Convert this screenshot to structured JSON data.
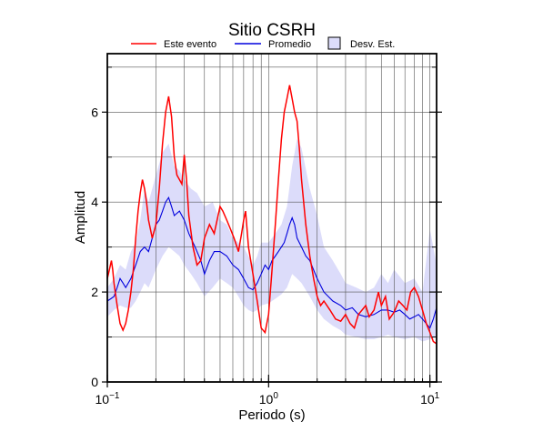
{
  "chart_data": {
    "type": "line",
    "title": "Sitio CSRH",
    "xlabel": "Periodo (s)",
    "ylabel": "Amplitud",
    "xscale": "log",
    "xlim": [
      0.1,
      11
    ],
    "ylim": [
      0,
      7.3
    ],
    "grid": true,
    "legend_placement": "top",
    "x_tick_labels": [
      {
        "value": 0.1,
        "base": "10",
        "exp": "−1"
      },
      {
        "value": 1,
        "base": "10",
        "exp": "0"
      },
      {
        "value": 10,
        "base": "10",
        "exp": "1"
      }
    ],
    "y_ticks": [
      0,
      2,
      4,
      6
    ],
    "y_tick_labels": [
      "0",
      "2",
      "4",
      "6"
    ],
    "legend": {
      "event_label": "Este evento",
      "mean_label": "Promedio",
      "std_label": "Desv. Est."
    },
    "colors": {
      "event": "#ff0000",
      "mean": "#0000dd",
      "std_fill": "#dcdcfa"
    },
    "series": [
      {
        "name": "Este evento",
        "x": [
          0.1,
          0.103,
          0.106,
          0.108,
          0.11,
          0.115,
          0.12,
          0.125,
          0.13,
          0.135,
          0.14,
          0.145,
          0.15,
          0.155,
          0.16,
          0.165,
          0.17,
          0.175,
          0.18,
          0.19,
          0.2,
          0.21,
          0.22,
          0.23,
          0.24,
          0.25,
          0.26,
          0.27,
          0.28,
          0.29,
          0.3,
          0.31,
          0.32,
          0.34,
          0.36,
          0.38,
          0.4,
          0.43,
          0.46,
          0.5,
          0.52,
          0.55,
          0.58,
          0.61,
          0.65,
          0.68,
          0.7,
          0.72,
          0.75,
          0.8,
          0.85,
          0.9,
          0.95,
          1.0,
          1.05,
          1.1,
          1.15,
          1.2,
          1.25,
          1.3,
          1.35,
          1.4,
          1.45,
          1.5,
          1.55,
          1.6,
          1.7,
          1.8,
          1.9,
          2.0,
          2.1,
          2.2,
          2.4,
          2.6,
          2.8,
          3.0,
          3.2,
          3.4,
          3.6,
          3.8,
          4.0,
          4.2,
          4.5,
          4.8,
          5.0,
          5.3,
          5.6,
          6.0,
          6.4,
          6.8,
          7.2,
          7.6,
          8.0,
          8.5,
          9.0,
          9.5,
          10.0,
          10.5,
          11.0
        ],
        "y": [
          2.3,
          2.5,
          2.7,
          2.5,
          2.2,
          1.7,
          1.3,
          1.15,
          1.3,
          1.6,
          2.0,
          2.5,
          3.2,
          3.8,
          4.2,
          4.5,
          4.3,
          4.0,
          3.6,
          3.2,
          3.5,
          4.3,
          5.3,
          6.0,
          6.35,
          5.9,
          5.0,
          4.6,
          4.5,
          4.4,
          5.05,
          4.5,
          3.7,
          3.0,
          2.6,
          2.7,
          3.2,
          3.5,
          3.3,
          3.9,
          3.8,
          3.6,
          3.4,
          3.2,
          2.9,
          3.3,
          3.6,
          3.8,
          3.0,
          2.4,
          1.8,
          1.2,
          1.1,
          1.5,
          2.5,
          3.5,
          4.5,
          5.4,
          6.0,
          6.3,
          6.6,
          6.3,
          6.0,
          5.8,
          5.2,
          4.5,
          3.5,
          2.8,
          2.3,
          1.9,
          1.7,
          1.8,
          1.6,
          1.4,
          1.35,
          1.5,
          1.3,
          1.2,
          1.5,
          1.6,
          1.7,
          1.45,
          1.6,
          2.0,
          1.7,
          1.9,
          1.4,
          1.55,
          1.8,
          1.7,
          1.6,
          2.0,
          2.1,
          1.9,
          1.6,
          1.3,
          1.1,
          0.9,
          0.85
        ]
      },
      {
        "name": "Promedio",
        "x": [
          0.1,
          0.105,
          0.11,
          0.115,
          0.12,
          0.125,
          0.13,
          0.14,
          0.15,
          0.16,
          0.17,
          0.18,
          0.19,
          0.2,
          0.21,
          0.22,
          0.23,
          0.24,
          0.25,
          0.26,
          0.28,
          0.3,
          0.32,
          0.35,
          0.38,
          0.4,
          0.43,
          0.46,
          0.5,
          0.55,
          0.6,
          0.65,
          0.7,
          0.75,
          0.8,
          0.85,
          0.9,
          0.95,
          1.0,
          1.05,
          1.1,
          1.15,
          1.2,
          1.25,
          1.3,
          1.35,
          1.4,
          1.45,
          1.5,
          1.6,
          1.7,
          1.8,
          2.0,
          2.2,
          2.5,
          2.8,
          3.0,
          3.3,
          3.6,
          4.0,
          4.5,
          5.0,
          5.5,
          6.0,
          6.5,
          7.0,
          7.5,
          8.0,
          8.5,
          9.0,
          10.0,
          10.5,
          11.0
        ],
        "y": [
          1.8,
          1.85,
          1.9,
          2.1,
          2.3,
          2.2,
          2.1,
          2.3,
          2.6,
          2.9,
          3.0,
          2.9,
          3.2,
          3.5,
          3.6,
          3.8,
          4.0,
          4.1,
          3.9,
          3.7,
          3.8,
          3.6,
          3.3,
          3.0,
          2.7,
          2.4,
          2.7,
          2.9,
          2.9,
          2.8,
          2.6,
          2.5,
          2.3,
          2.1,
          2.05,
          2.2,
          2.4,
          2.6,
          2.5,
          2.7,
          2.8,
          2.9,
          3.0,
          3.1,
          3.3,
          3.5,
          3.65,
          3.5,
          3.2,
          3.0,
          2.8,
          2.7,
          2.3,
          2.0,
          1.8,
          1.7,
          1.6,
          1.65,
          1.5,
          1.45,
          1.5,
          1.6,
          1.6,
          1.55,
          1.6,
          1.5,
          1.4,
          1.45,
          1.5,
          1.4,
          1.2,
          1.4,
          1.65
        ]
      },
      {
        "name": "Desv. Est.",
        "x": [
          0.1,
          0.11,
          0.12,
          0.13,
          0.14,
          0.15,
          0.16,
          0.17,
          0.18,
          0.19,
          0.2,
          0.22,
          0.24,
          0.26,
          0.28,
          0.3,
          0.33,
          0.36,
          0.4,
          0.45,
          0.5,
          0.55,
          0.6,
          0.65,
          0.7,
          0.75,
          0.8,
          0.85,
          0.9,
          1.0,
          1.1,
          1.2,
          1.3,
          1.4,
          1.5,
          1.6,
          1.8,
          2.0,
          2.2,
          2.5,
          2.8,
          3.0,
          3.5,
          4.0,
          4.5,
          5.0,
          5.5,
          6.0,
          7.0,
          8.0,
          9.0,
          10.0,
          11.0
        ],
        "lower": [
          1.45,
          1.6,
          1.7,
          1.65,
          1.65,
          1.8,
          2.0,
          2.2,
          2.1,
          2.3,
          2.5,
          2.8,
          3.0,
          2.9,
          2.8,
          2.6,
          2.4,
          2.2,
          1.9,
          2.1,
          2.3,
          2.2,
          2.1,
          1.9,
          1.7,
          1.6,
          1.55,
          1.6,
          1.7,
          1.75,
          1.85,
          1.95,
          2.1,
          2.4,
          2.3,
          2.2,
          1.9,
          1.6,
          1.4,
          1.25,
          1.15,
          1.05,
          1.0,
          0.95,
          0.95,
          1.0,
          1.05,
          1.0,
          0.95,
          1.0,
          0.9,
          0.95,
          1.0
        ],
        "upper": [
          2.1,
          2.3,
          2.6,
          2.5,
          2.9,
          3.1,
          3.6,
          4.3,
          4.0,
          4.3,
          4.6,
          5.1,
          5.3,
          4.8,
          4.7,
          4.5,
          4.3,
          4.2,
          3.9,
          4.0,
          3.6,
          3.5,
          3.2,
          3.1,
          3.0,
          2.8,
          2.6,
          2.8,
          3.1,
          3.1,
          3.3,
          3.5,
          3.9,
          4.8,
          5.4,
          5.2,
          4.3,
          3.7,
          3.0,
          2.7,
          2.4,
          2.2,
          2.1,
          2.0,
          2.1,
          2.4,
          2.2,
          2.5,
          2.2,
          2.3,
          2.0,
          3.4,
          2.6
        ]
      }
    ]
  }
}
